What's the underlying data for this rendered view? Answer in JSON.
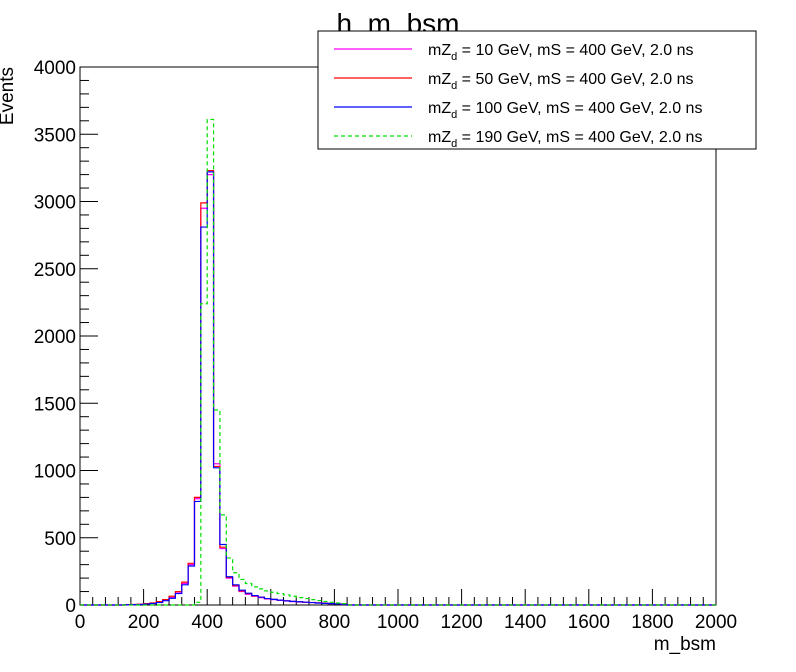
{
  "chart_data": {
    "type": "line",
    "title": "h_m_bsm",
    "xlabel": "m_bsm",
    "ylabel": "Events",
    "xlim": [
      0,
      2000
    ],
    "ylim": [
      0,
      4000
    ],
    "x_ticks": [
      "0",
      "200",
      "400",
      "600",
      "800",
      "1000",
      "1200",
      "1400",
      "1600",
      "1800",
      "2000"
    ],
    "y_ticks": [
      "0",
      "500",
      "1000",
      "1500",
      "2000",
      "2500",
      "3000",
      "3500",
      "4000"
    ],
    "bin_width": 20,
    "legend_position": "top-right",
    "series": [
      {
        "name": "mZd = 10 GeV, mS = 400 GeV, 2.0 ns",
        "legend": {
          "prefix": "mZ",
          "sub": "d",
          "suffix": " = 10 GeV, mS = 400 GeV, 2.0 ns"
        },
        "color": "#ff00ff",
        "dash": false,
        "bin_starts": [
          140,
          160,
          180,
          200,
          220,
          240,
          260,
          280,
          300,
          320,
          340,
          360,
          380,
          400,
          420,
          440,
          460,
          480,
          500,
          520,
          540,
          560,
          580,
          600,
          620,
          640,
          660,
          680,
          700,
          720,
          740,
          760,
          780,
          800,
          820
        ],
        "values": [
          2,
          3,
          5,
          8,
          12,
          20,
          35,
          55,
          90,
          160,
          300,
          790,
          2950,
          3200,
          1050,
          420,
          200,
          140,
          100,
          80,
          65,
          55,
          45,
          40,
          35,
          30,
          25,
          22,
          20,
          18,
          15,
          12,
          10,
          8,
          5
        ]
      },
      {
        "name": "mZd = 50 GeV, mS = 400 GeV, 2.0 ns",
        "legend": {
          "prefix": "mZ",
          "sub": "d",
          "suffix": " = 50 GeV, mS = 400 GeV, 2.0 ns"
        },
        "color": "#ff0000",
        "dash": false,
        "bin_starts": [
          140,
          160,
          180,
          200,
          220,
          240,
          260,
          280,
          300,
          320,
          340,
          360,
          380,
          400,
          420,
          440,
          460,
          480,
          500,
          520,
          540,
          560,
          580,
          600,
          620,
          640,
          660,
          680,
          700,
          720,
          740,
          760,
          780,
          800,
          820
        ],
        "values": [
          3,
          4,
          6,
          10,
          15,
          25,
          40,
          65,
          100,
          170,
          310,
          800,
          2990,
          3230,
          1030,
          430,
          205,
          145,
          105,
          85,
          68,
          58,
          48,
          42,
          36,
          31,
          27,
          24,
          21,
          19,
          16,
          13,
          11,
          9,
          6
        ]
      },
      {
        "name": "mZd = 100 GeV, mS = 400 GeV, 2.0 ns",
        "legend": {
          "prefix": "mZ",
          "sub": "d",
          "suffix": " = 100 GeV, mS = 400 GeV, 2.0 ns"
        },
        "color": "#0000ff",
        "dash": false,
        "bin_starts": [
          140,
          160,
          180,
          200,
          220,
          240,
          260,
          280,
          300,
          320,
          340,
          360,
          380,
          400,
          420,
          440,
          460,
          480,
          500,
          520,
          540,
          560,
          580,
          600,
          620,
          640,
          660,
          680,
          700,
          720,
          740,
          760,
          780,
          800,
          820
        ],
        "values": [
          2,
          3,
          4,
          7,
          11,
          18,
          32,
          50,
          85,
          150,
          290,
          770,
          2810,
          3220,
          1020,
          450,
          210,
          150,
          110,
          88,
          70,
          58,
          48,
          42,
          36,
          31,
          27,
          24,
          21,
          18,
          15,
          12,
          10,
          8,
          5
        ]
      },
      {
        "name": "mZd = 190 GeV, mS = 400 GeV, 2.0 ns",
        "legend": {
          "prefix": "mZ",
          "sub": "d",
          "suffix": " = 190 GeV, mS = 400 GeV, 2.0 ns"
        },
        "color": "#00dd00",
        "dash": true,
        "bin_starts": [
          360,
          380,
          400,
          420,
          440,
          460,
          480,
          500,
          520,
          540,
          560,
          580,
          600,
          620,
          640,
          660,
          680,
          700,
          720,
          740,
          760,
          780,
          800,
          820
        ],
        "values": [
          20,
          2240,
          3610,
          1450,
          670,
          350,
          240,
          190,
          160,
          135,
          120,
          105,
          95,
          85,
          75,
          65,
          55,
          48,
          40,
          33,
          26,
          20,
          15,
          10
        ]
      }
    ]
  }
}
